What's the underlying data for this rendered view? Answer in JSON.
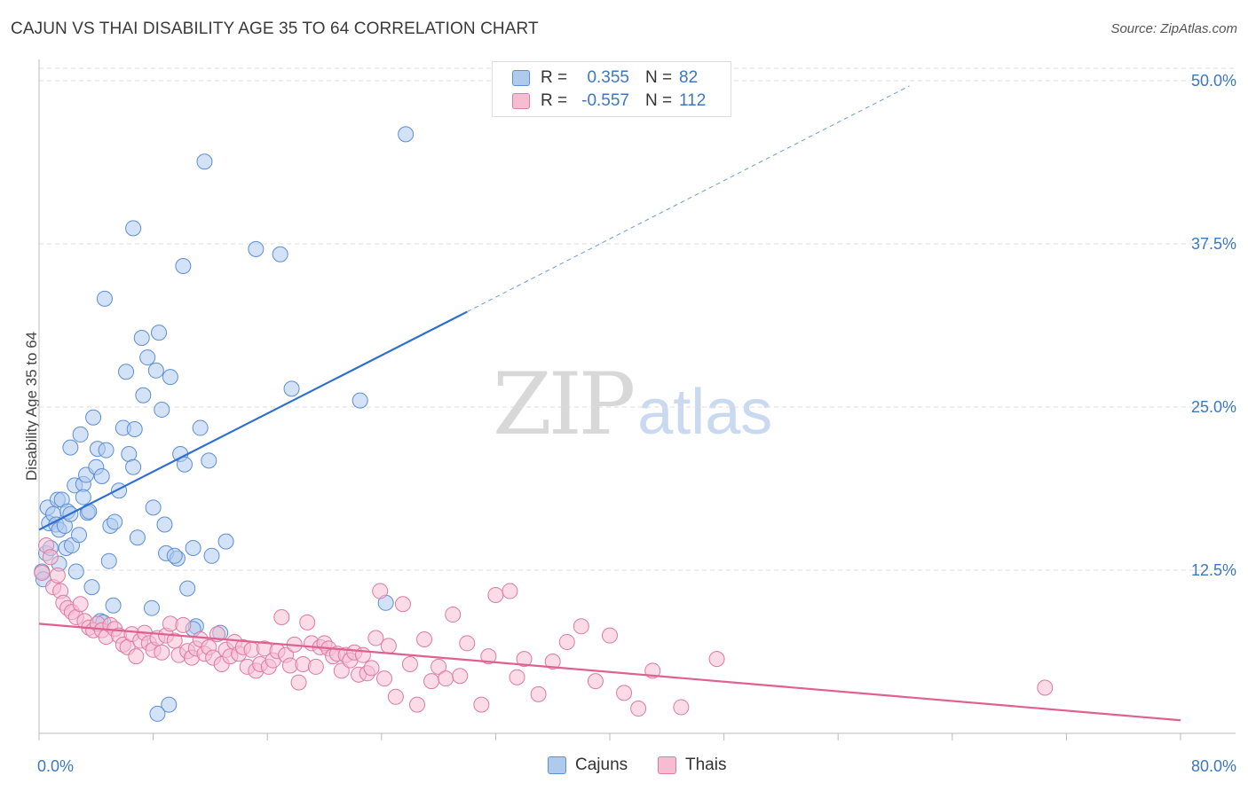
{
  "title": "CAJUN VS THAI DISABILITY AGE 35 TO 64 CORRELATION CHART",
  "source": "Source: ZipAtlas.com",
  "watermark": {
    "zip": "ZIP",
    "atlas": "atlas"
  },
  "colors": {
    "blue_fill": "#aecbee",
    "blue_stroke": "#5b8fd6",
    "blue_line": "#2d6fcf",
    "pink_fill": "#f6bdd1",
    "pink_stroke": "#e07aa0",
    "pink_line": "#e0608f",
    "grid": "#dddddd",
    "tick_label": "#3b78c2"
  },
  "legend": {
    "rows": [
      {
        "r_label": "R =",
        "r_value": "0.355",
        "n_label": "N =",
        "n_value": "82"
      },
      {
        "r_label": "R =",
        "r_value": "-0.557",
        "n_label": "N =",
        "n_value": "112"
      }
    ],
    "bottom": [
      {
        "label": "Cajuns"
      },
      {
        "label": "Thais"
      }
    ]
  },
  "chart_data": {
    "type": "scatter",
    "title": "CAJUN VS THAI DISABILITY AGE 35 TO 64 CORRELATION CHART",
    "xlabel": "",
    "ylabel": "Disability Age 35 to 64",
    "xlim": [
      0,
      80
    ],
    "ylim": [
      0,
      50
    ],
    "x_tick_labels": [
      {
        "value": 0,
        "label": "0.0%"
      },
      {
        "value": 80,
        "label": "80.0%"
      }
    ],
    "y_tick_labels": [
      {
        "value": 12.5,
        "label": "12.5%"
      },
      {
        "value": 25,
        "label": "25.0%"
      },
      {
        "value": 37.5,
        "label": "37.5%"
      },
      {
        "value": 50,
        "label": "50.0%"
      }
    ],
    "series": [
      {
        "name": "Cajuns",
        "color": "#aecbee",
        "r": 0.355,
        "n": 82,
        "trend": {
          "x0": 0,
          "y0": 15.6,
          "x1": 30,
          "y1": 32.3,
          "dash_to_x": 61,
          "dash_to_y": 49.6
        },
        "points": [
          [
            0.2,
            12.4
          ],
          [
            0.3,
            11.8
          ],
          [
            0.5,
            13.8
          ],
          [
            0.6,
            17.3
          ],
          [
            0.7,
            16.1
          ],
          [
            0.8,
            14.2
          ],
          [
            1.0,
            16.8
          ],
          [
            1.2,
            16.0
          ],
          [
            1.3,
            17.9
          ],
          [
            1.4,
            15.6
          ],
          [
            1.4,
            13.0
          ],
          [
            1.6,
            17.9
          ],
          [
            1.8,
            15.9
          ],
          [
            1.9,
            14.2
          ],
          [
            2.0,
            17.0
          ],
          [
            2.2,
            16.8
          ],
          [
            2.3,
            14.4
          ],
          [
            2.5,
            19.0
          ],
          [
            2.6,
            12.4
          ],
          [
            2.8,
            15.2
          ],
          [
            2.9,
            22.9
          ],
          [
            3.1,
            19.1
          ],
          [
            3.1,
            18.1
          ],
          [
            3.3,
            19.8
          ],
          [
            3.4,
            16.9
          ],
          [
            3.5,
            17.0
          ],
          [
            3.7,
            11.2
          ],
          [
            3.8,
            24.2
          ],
          [
            4.0,
            20.4
          ],
          [
            4.1,
            21.8
          ],
          [
            4.3,
            8.6
          ],
          [
            4.4,
            19.7
          ],
          [
            4.6,
            33.3
          ],
          [
            4.7,
            21.7
          ],
          [
            4.9,
            13.2
          ],
          [
            5.0,
            15.9
          ],
          [
            5.2,
            9.8
          ],
          [
            5.3,
            16.2
          ],
          [
            5.6,
            18.6
          ],
          [
            5.9,
            23.4
          ],
          [
            6.1,
            27.7
          ],
          [
            6.3,
            21.4
          ],
          [
            6.6,
            38.7
          ],
          [
            6.7,
            23.3
          ],
          [
            6.9,
            15.0
          ],
          [
            7.2,
            30.3
          ],
          [
            7.3,
            25.9
          ],
          [
            7.6,
            28.8
          ],
          [
            7.9,
            9.6
          ],
          [
            8.0,
            17.3
          ],
          [
            8.2,
            27.8
          ],
          [
            8.4,
            30.7
          ],
          [
            8.6,
            24.8
          ],
          [
            8.8,
            16.0
          ],
          [
            8.9,
            13.8
          ],
          [
            9.1,
            2.2
          ],
          [
            9.2,
            27.3
          ],
          [
            9.7,
            13.4
          ],
          [
            9.9,
            21.4
          ],
          [
            10.1,
            35.8
          ],
          [
            10.2,
            20.6
          ],
          [
            10.4,
            11.1
          ],
          [
            10.8,
            14.2
          ],
          [
            11.0,
            8.2
          ],
          [
            11.3,
            23.4
          ],
          [
            11.6,
            43.8
          ],
          [
            11.9,
            20.9
          ],
          [
            12.1,
            13.6
          ],
          [
            12.7,
            7.7
          ],
          [
            13.1,
            14.7
          ],
          [
            15.2,
            37.1
          ],
          [
            16.9,
            36.7
          ],
          [
            17.7,
            26.4
          ],
          [
            22.5,
            25.5
          ],
          [
            24.3,
            10.0
          ],
          [
            25.7,
            45.9
          ],
          [
            10.8,
            8.0
          ],
          [
            8.3,
            1.5
          ],
          [
            6.6,
            20.4
          ],
          [
            9.5,
            13.6
          ],
          [
            4.5,
            8.5
          ],
          [
            2.2,
            21.9
          ]
        ]
      },
      {
        "name": "Thais",
        "color": "#f6bdd1",
        "r": -0.557,
        "n": 112,
        "trend": {
          "x0": 0,
          "y0": 8.4,
          "x1": 80,
          "y1": 1.0
        },
        "points": [
          [
            0.2,
            12.3
          ],
          [
            0.5,
            14.4
          ],
          [
            0.8,
            13.5
          ],
          [
            1.0,
            11.2
          ],
          [
            1.3,
            12.1
          ],
          [
            1.5,
            10.9
          ],
          [
            1.7,
            10.0
          ],
          [
            2.0,
            9.6
          ],
          [
            2.3,
            9.3
          ],
          [
            2.6,
            8.9
          ],
          [
            2.9,
            9.9
          ],
          [
            3.2,
            8.6
          ],
          [
            3.5,
            8.1
          ],
          [
            3.8,
            7.9
          ],
          [
            4.1,
            8.4
          ],
          [
            4.4,
            7.9
          ],
          [
            4.7,
            7.4
          ],
          [
            5.0,
            8.3
          ],
          [
            5.3,
            8.0
          ],
          [
            5.6,
            7.5
          ],
          [
            5.9,
            6.8
          ],
          [
            6.2,
            6.6
          ],
          [
            6.5,
            7.6
          ],
          [
            6.8,
            5.9
          ],
          [
            7.1,
            7.1
          ],
          [
            7.4,
            7.7
          ],
          [
            7.7,
            6.9
          ],
          [
            8.0,
            6.4
          ],
          [
            8.3,
            7.3
          ],
          [
            8.6,
            6.2
          ],
          [
            8.9,
            7.5
          ],
          [
            9.2,
            8.4
          ],
          [
            9.5,
            7.1
          ],
          [
            9.8,
            6.0
          ],
          [
            10.1,
            8.3
          ],
          [
            10.4,
            6.3
          ],
          [
            10.7,
            5.8
          ],
          [
            11.0,
            6.5
          ],
          [
            11.3,
            7.2
          ],
          [
            11.6,
            6.1
          ],
          [
            11.9,
            6.6
          ],
          [
            12.2,
            5.8
          ],
          [
            12.5,
            7.6
          ],
          [
            12.8,
            5.3
          ],
          [
            13.1,
            6.4
          ],
          [
            13.4,
            5.9
          ],
          [
            13.7,
            7.0
          ],
          [
            14.0,
            6.1
          ],
          [
            14.3,
            6.6
          ],
          [
            14.6,
            5.1
          ],
          [
            14.9,
            6.4
          ],
          [
            15.2,
            4.8
          ],
          [
            15.5,
            5.3
          ],
          [
            15.8,
            6.5
          ],
          [
            16.1,
            5.1
          ],
          [
            16.4,
            5.6
          ],
          [
            16.7,
            6.3
          ],
          [
            17.0,
            8.9
          ],
          [
            17.3,
            6.0
          ],
          [
            17.6,
            5.2
          ],
          [
            17.9,
            6.8
          ],
          [
            18.2,
            3.9
          ],
          [
            18.5,
            5.3
          ],
          [
            18.8,
            8.5
          ],
          [
            19.1,
            6.9
          ],
          [
            19.4,
            5.1
          ],
          [
            19.7,
            6.6
          ],
          [
            20.0,
            6.9
          ],
          [
            20.3,
            6.5
          ],
          [
            20.6,
            5.9
          ],
          [
            20.9,
            6.1
          ],
          [
            21.2,
            4.8
          ],
          [
            21.5,
            6.0
          ],
          [
            21.8,
            5.6
          ],
          [
            22.1,
            6.2
          ],
          [
            22.4,
            4.5
          ],
          [
            22.7,
            6.0
          ],
          [
            23.0,
            4.6
          ],
          [
            23.3,
            5.0
          ],
          [
            23.6,
            7.3
          ],
          [
            23.9,
            10.9
          ],
          [
            24.2,
            4.2
          ],
          [
            24.5,
            6.7
          ],
          [
            25.0,
            2.8
          ],
          [
            25.5,
            9.9
          ],
          [
            26.0,
            5.3
          ],
          [
            26.5,
            2.2
          ],
          [
            27.0,
            7.2
          ],
          [
            27.5,
            4.0
          ],
          [
            28.0,
            5.1
          ],
          [
            28.5,
            4.2
          ],
          [
            29.0,
            9.1
          ],
          [
            29.5,
            4.4
          ],
          [
            30.0,
            6.9
          ],
          [
            31.0,
            2.2
          ],
          [
            31.5,
            5.9
          ],
          [
            32.0,
            10.6
          ],
          [
            33.0,
            10.9
          ],
          [
            33.5,
            4.3
          ],
          [
            34.0,
            5.7
          ],
          [
            35.0,
            3.0
          ],
          [
            36.0,
            5.5
          ],
          [
            37.0,
            7.0
          ],
          [
            38.0,
            8.2
          ],
          [
            39.0,
            4.0
          ],
          [
            40.0,
            7.5
          ],
          [
            41.0,
            3.1
          ],
          [
            42.0,
            1.9
          ],
          [
            43.0,
            4.8
          ],
          [
            45.0,
            2.0
          ],
          [
            47.5,
            5.7
          ],
          [
            70.5,
            3.5
          ]
        ]
      }
    ]
  }
}
